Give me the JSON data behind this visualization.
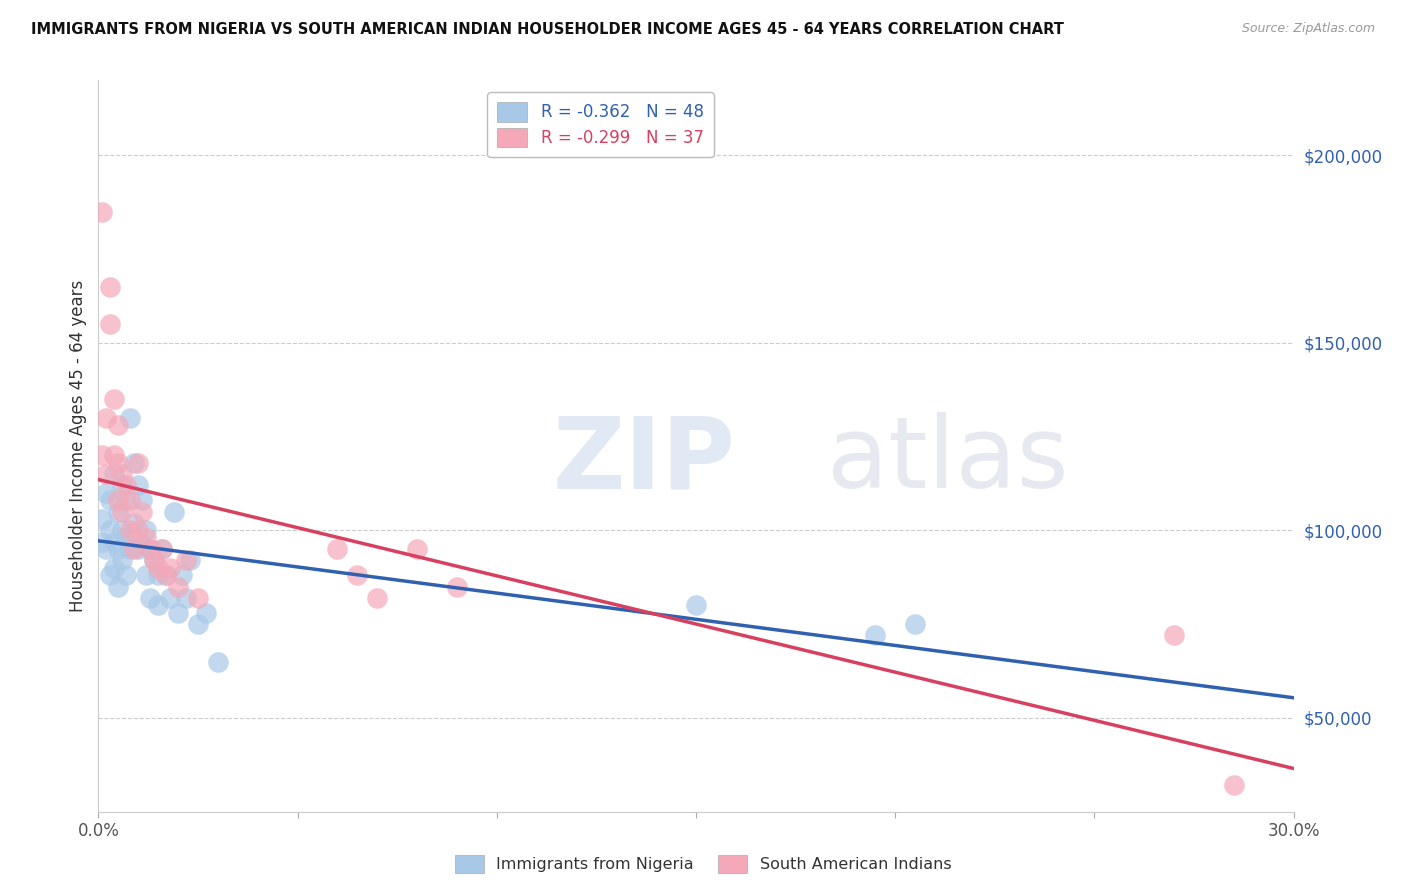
{
  "title": "IMMIGRANTS FROM NIGERIA VS SOUTH AMERICAN INDIAN HOUSEHOLDER INCOME AGES 45 - 64 YEARS CORRELATION CHART",
  "source": "Source: ZipAtlas.com",
  "ylabel": "Householder Income Ages 45 - 64 years",
  "xlim": [
    0.0,
    0.3
  ],
  "ylim": [
    25000,
    220000
  ],
  "xticks": [
    0.0,
    0.05,
    0.1,
    0.15,
    0.2,
    0.25,
    0.3
  ],
  "xtick_labels": [
    "0.0%",
    "",
    "",
    "",
    "",
    "",
    "30.0%"
  ],
  "ytick_vals": [
    50000,
    100000,
    150000,
    200000
  ],
  "ytick_labels_right": [
    "$50,000",
    "$100,000",
    "$150,000",
    "$200,000"
  ],
  "legend_blue_R": "-0.362",
  "legend_blue_N": "48",
  "legend_pink_R": "-0.299",
  "legend_pink_N": "37",
  "label_blue": "Immigrants from Nigeria",
  "label_pink": "South American Indians",
  "blue_color": "#a8c8e8",
  "pink_color": "#f4a8b8",
  "blue_line_color": "#3060b0",
  "pink_line_color": "#d84060",
  "nigeria_x": [
    0.001,
    0.001,
    0.002,
    0.002,
    0.003,
    0.003,
    0.003,
    0.004,
    0.004,
    0.004,
    0.005,
    0.005,
    0.005,
    0.006,
    0.006,
    0.006,
    0.007,
    0.007,
    0.007,
    0.008,
    0.008,
    0.009,
    0.009,
    0.01,
    0.01,
    0.011,
    0.011,
    0.012,
    0.012,
    0.013,
    0.013,
    0.014,
    0.015,
    0.015,
    0.016,
    0.017,
    0.018,
    0.019,
    0.02,
    0.021,
    0.022,
    0.023,
    0.025,
    0.027,
    0.03,
    0.15,
    0.195,
    0.205
  ],
  "nigeria_y": [
    103000,
    97000,
    110000,
    95000,
    108000,
    100000,
    88000,
    115000,
    97000,
    90000,
    105000,
    95000,
    85000,
    112000,
    100000,
    92000,
    108000,
    98000,
    88000,
    130000,
    95000,
    118000,
    102000,
    112000,
    95000,
    108000,
    96000,
    100000,
    88000,
    95000,
    82000,
    92000,
    88000,
    80000,
    95000,
    88000,
    82000,
    105000,
    78000,
    88000,
    82000,
    92000,
    75000,
    78000,
    65000,
    80000,
    72000,
    75000
  ],
  "sa_indian_x": [
    0.001,
    0.001,
    0.002,
    0.002,
    0.003,
    0.003,
    0.004,
    0.004,
    0.005,
    0.005,
    0.005,
    0.006,
    0.006,
    0.007,
    0.008,
    0.008,
    0.009,
    0.01,
    0.01,
    0.011,
    0.012,
    0.013,
    0.014,
    0.015,
    0.016,
    0.017,
    0.018,
    0.02,
    0.022,
    0.025,
    0.06,
    0.065,
    0.07,
    0.08,
    0.09,
    0.27,
    0.285
  ],
  "sa_indian_y": [
    185000,
    120000,
    130000,
    115000,
    165000,
    155000,
    135000,
    120000,
    128000,
    118000,
    108000,
    115000,
    105000,
    112000,
    108000,
    100000,
    95000,
    118000,
    100000,
    105000,
    98000,
    95000,
    92000,
    90000,
    95000,
    88000,
    90000,
    85000,
    92000,
    82000,
    95000,
    88000,
    82000,
    95000,
    85000,
    72000,
    32000
  ]
}
